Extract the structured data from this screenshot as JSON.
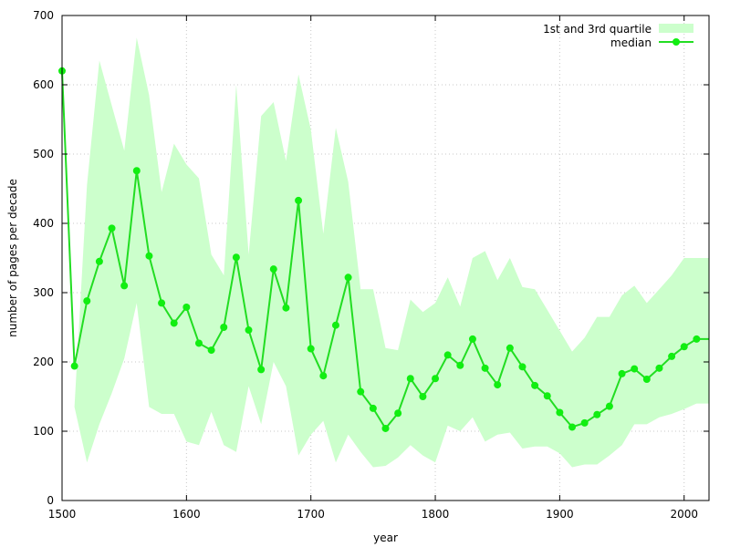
{
  "colors": {
    "band_fill": "#ccffcc",
    "median_line": "#22dd22",
    "median_marker": "#11ee11"
  },
  "chart_data": {
    "type": "line",
    "xlabel": "year",
    "ylabel": "number of pages per decade",
    "xlim": [
      1500,
      2020
    ],
    "ylim": [
      0,
      700
    ],
    "x_ticks": [
      1500,
      1600,
      1700,
      1800,
      1900,
      2000
    ],
    "y_ticks": [
      0,
      100,
      200,
      300,
      400,
      500,
      600,
      700
    ],
    "grid": true,
    "legend_position": "top-right",
    "x": [
      1500,
      1510,
      1520,
      1530,
      1540,
      1550,
      1560,
      1570,
      1580,
      1590,
      1600,
      1610,
      1620,
      1630,
      1640,
      1650,
      1660,
      1670,
      1680,
      1690,
      1700,
      1710,
      1720,
      1730,
      1740,
      1750,
      1760,
      1770,
      1780,
      1790,
      1800,
      1810,
      1820,
      1830,
      1840,
      1850,
      1860,
      1870,
      1880,
      1890,
      1900,
      1910,
      1920,
      1930,
      1940,
      1950,
      1960,
      1970,
      1980,
      1990,
      2000,
      2010,
      2020
    ],
    "series": [
      {
        "name": "1st and 3rd quartile",
        "kind": "band",
        "lower": [
          620,
          135,
          55,
          110,
          155,
          205,
          285,
          135,
          125,
          125,
          85,
          80,
          128,
          80,
          70,
          165,
          110,
          200,
          165,
          65,
          95,
          115,
          55,
          95,
          70,
          48,
          50,
          62,
          80,
          65,
          55,
          108,
          100,
          120,
          85,
          95,
          98,
          75,
          78,
          78,
          68,
          48,
          52,
          52,
          65,
          80,
          110,
          110,
          120,
          125,
          132,
          140,
          140
        ],
        "upper": [
          620,
          135,
          455,
          635,
          570,
          505,
          668,
          585,
          445,
          515,
          485,
          465,
          355,
          325,
          600,
          355,
          555,
          575,
          490,
          615,
          535,
          385,
          538,
          460,
          305,
          305,
          220,
          217,
          290,
          272,
          285,
          322,
          280,
          350,
          360,
          318,
          350,
          308,
          305,
          275,
          245,
          215,
          235,
          265,
          265,
          296,
          310,
          285,
          305,
          325,
          350,
          350,
          350
        ]
      },
      {
        "name": "median",
        "kind": "line",
        "values": [
          620,
          194,
          288,
          345,
          393,
          310,
          476,
          353,
          285,
          256,
          279,
          227,
          217,
          250,
          351,
          246,
          189,
          334,
          278,
          433,
          219,
          180,
          253,
          322,
          157,
          133,
          104,
          126,
          176,
          150,
          176,
          210,
          195,
          233,
          191,
          167,
          220,
          193,
          166,
          151,
          127,
          106,
          112,
          124,
          136,
          183,
          190,
          175,
          191,
          208,
          222,
          233,
          233
        ]
      }
    ]
  }
}
